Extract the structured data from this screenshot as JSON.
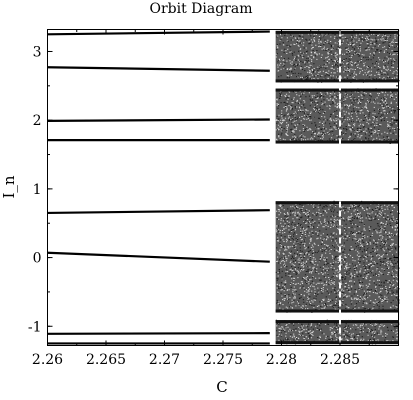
{
  "chart_data": {
    "type": "scatter",
    "title": "Orbit Diagram",
    "xlabel": "C",
    "ylabel": "I_n",
    "xlim": [
      2.26,
      2.29
    ],
    "ylim": [
      -1.28,
      3.32
    ],
    "grid": false,
    "legend": "none",
    "x_ticks": [
      2.26,
      2.265,
      2.27,
      2.275,
      2.28,
      2.285
    ],
    "x_tick_labels": [
      "2.26",
      "2.265",
      "2.27",
      "2.275",
      "2.28",
      "2.285"
    ],
    "y_ticks": [
      -1,
      0,
      1,
      2,
      3
    ],
    "y_tick_labels": [
      "-1",
      "0",
      "1",
      "2",
      "3"
    ],
    "periodic_branches": [
      {
        "x": [
          2.26,
          2.279
        ],
        "y": [
          3.25,
          3.29
        ]
      },
      {
        "x": [
          2.26,
          2.279
        ],
        "y": [
          2.77,
          2.72
        ]
      },
      {
        "x": [
          2.26,
          2.279
        ],
        "y": [
          1.99,
          2.01
        ]
      },
      {
        "x": [
          2.26,
          2.279
        ],
        "y": [
          1.71,
          1.71
        ]
      },
      {
        "x": [
          2.26,
          2.279
        ],
        "y": [
          0.65,
          0.69
        ]
      },
      {
        "x": [
          2.26,
          2.279
        ],
        "y": [
          0.07,
          -0.06
        ]
      },
      {
        "x": [
          2.26,
          2.279
        ],
        "y": [
          -1.11,
          -1.1
        ]
      },
      {
        "x": [
          2.26,
          2.279
        ],
        "y": [
          -1.25,
          -1.25
        ]
      }
    ],
    "chaotic_bands": [
      {
        "x": [
          2.2795,
          2.29
        ],
        "y": [
          2.55,
          3.3
        ]
      },
      {
        "x": [
          2.2795,
          2.29
        ],
        "y": [
          1.66,
          2.46
        ]
      },
      {
        "x": [
          2.2795,
          2.29
        ],
        "y": [
          -0.8,
          0.82
        ]
      },
      {
        "x": [
          2.2795,
          2.29
        ],
        "y": [
          -1.26,
          -0.91
        ]
      }
    ],
    "white_line_x": 2.285
  }
}
